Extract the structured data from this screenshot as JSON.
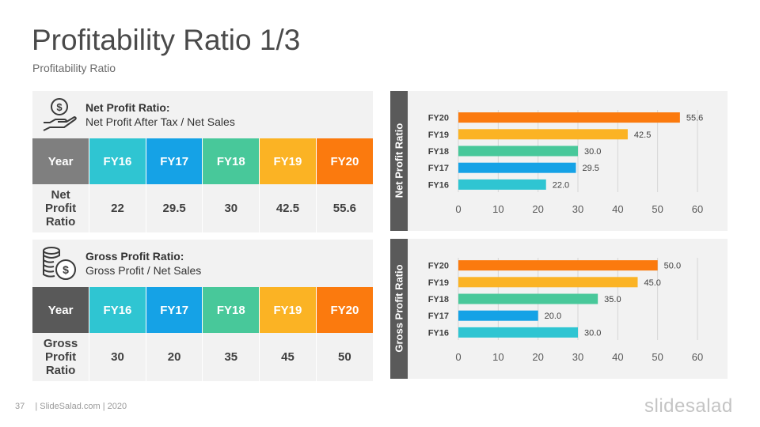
{
  "title": "Profitability Ratio 1/3",
  "subtitle": "Profitability Ratio",
  "colors": {
    "FY16": "#2fc5d2",
    "FY17": "#15a2e6",
    "FY18": "#48c89a",
    "FY19": "#fbb324",
    "FY20": "#fb7a0e",
    "header_gray": "#7f7f7f",
    "header_dark": "#595959",
    "panel_bg": "#f2f2f2"
  },
  "net_panel": {
    "icon": "money-hand-icon",
    "name": "Net Profit Ratio:",
    "formula": "Net Profit After Tax / Net Sales",
    "header_label": "Year",
    "years": [
      "FY16",
      "FY17",
      "FY18",
      "FY19",
      "FY20"
    ],
    "row_label": "Net Profit Ratio",
    "values": [
      "22",
      "29.5",
      "30",
      "42.5",
      "55.6"
    ]
  },
  "gross_panel": {
    "icon": "coins-dollar-icon",
    "name": "Gross Profit Ratio:",
    "formula": "Gross Profit / Net Sales",
    "header_label": "Year",
    "years": [
      "FY16",
      "FY17",
      "FY18",
      "FY19",
      "FY20"
    ],
    "row_label": "Gross Profit Ratio",
    "values": [
      "30",
      "20",
      "35",
      "45",
      "50"
    ]
  },
  "chart_data": [
    {
      "type": "bar",
      "orientation": "horizontal",
      "side_label": "Net Profit Ratio",
      "categories": [
        "FY20",
        "FY19",
        "FY18",
        "FY17",
        "FY16"
      ],
      "values": [
        55.6,
        42.5,
        30.0,
        29.5,
        22.0
      ],
      "value_labels": [
        "55.6",
        "42.5",
        "30.0",
        "29.5",
        "22.0"
      ],
      "bar_colors": [
        "#fb7a0e",
        "#fbb324",
        "#48c89a",
        "#15a2e6",
        "#2fc5d2"
      ],
      "xlim": [
        0,
        60
      ],
      "xticks": [
        "0",
        "10",
        "20",
        "30",
        "40",
        "50",
        "60"
      ],
      "grid": true
    },
    {
      "type": "bar",
      "orientation": "horizontal",
      "side_label": "Gross Profit Ratio",
      "categories": [
        "FY20",
        "FY19",
        "FY18",
        "FY17",
        "FY16"
      ],
      "values": [
        50.0,
        45.0,
        35.0,
        20.0,
        30.0
      ],
      "value_labels": [
        "50.0",
        "45.0",
        "35.0",
        "20.0",
        "30.0"
      ],
      "bar_colors": [
        "#fb7a0e",
        "#fbb324",
        "#48c89a",
        "#15a2e6",
        "#2fc5d2"
      ],
      "xlim": [
        0,
        60
      ],
      "xticks": [
        "0",
        "10",
        "20",
        "30",
        "40",
        "50",
        "60"
      ],
      "grid": true
    }
  ],
  "footer": {
    "page_number": "37",
    "text": "| SlideSalad.com | 2020"
  },
  "logo": "slidesalad"
}
